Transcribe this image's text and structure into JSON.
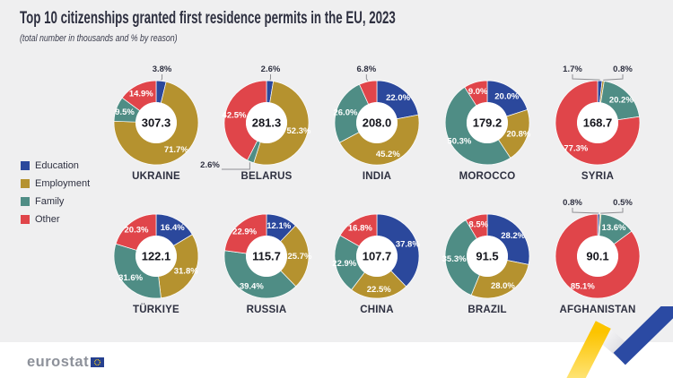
{
  "title": "Top 10 citizenships granted first residence permits in the EU, 2023",
  "subtitle": "(total number in thousands and % by reason)",
  "legend": [
    {
      "label": "Education",
      "color": "#2b489c"
    },
    {
      "label": "Employment",
      "color": "#b5922f"
    },
    {
      "label": "Family",
      "color": "#4f8d85"
    },
    {
      "label": "Other",
      "color": "#e0454a"
    }
  ],
  "footer": {
    "logo_text": "eurostat"
  },
  "chart_data": {
    "type": "pie",
    "subtype": "donut",
    "unit": "thousands",
    "value_note": "center value = total permits in thousands, slices = % by reason",
    "reasons": [
      "Education",
      "Employment",
      "Family",
      "Other"
    ],
    "colors": [
      "#2b489c",
      "#b5922f",
      "#4f8d85",
      "#e0454a"
    ],
    "countries": [
      {
        "name": "UKRAINE",
        "total": "307.3",
        "values": [
          3.8,
          71.7,
          9.5,
          14.9
        ]
      },
      {
        "name": "BELARUS",
        "total": "281.3",
        "values": [
          2.6,
          52.3,
          2.6,
          42.5
        ]
      },
      {
        "name": "INDIA",
        "total": "208.0",
        "values": [
          22.0,
          45.2,
          26.0,
          6.8
        ]
      },
      {
        "name": "MOROCCO",
        "total": "179.2",
        "values": [
          20.0,
          20.8,
          50.3,
          9.0
        ]
      },
      {
        "name": "SYRIA",
        "total": "168.7",
        "values": [
          1.7,
          0.8,
          20.2,
          77.3
        ]
      },
      {
        "name": "TÜRKIYE",
        "total": "122.1",
        "values": [
          16.4,
          31.8,
          31.6,
          20.3
        ]
      },
      {
        "name": "RUSSIA",
        "total": "115.7",
        "values": [
          12.1,
          25.7,
          39.4,
          22.9
        ]
      },
      {
        "name": "CHINA",
        "total": "107.7",
        "values": [
          37.8,
          22.5,
          22.9,
          16.8
        ]
      },
      {
        "name": "BRAZIL",
        "total": "91.5",
        "values": [
          28.2,
          28.0,
          35.3,
          8.5
        ]
      },
      {
        "name": "AFGHANISTAN",
        "total": "90.1",
        "values": [
          0.8,
          0.5,
          13.6,
          85.1
        ]
      }
    ]
  }
}
